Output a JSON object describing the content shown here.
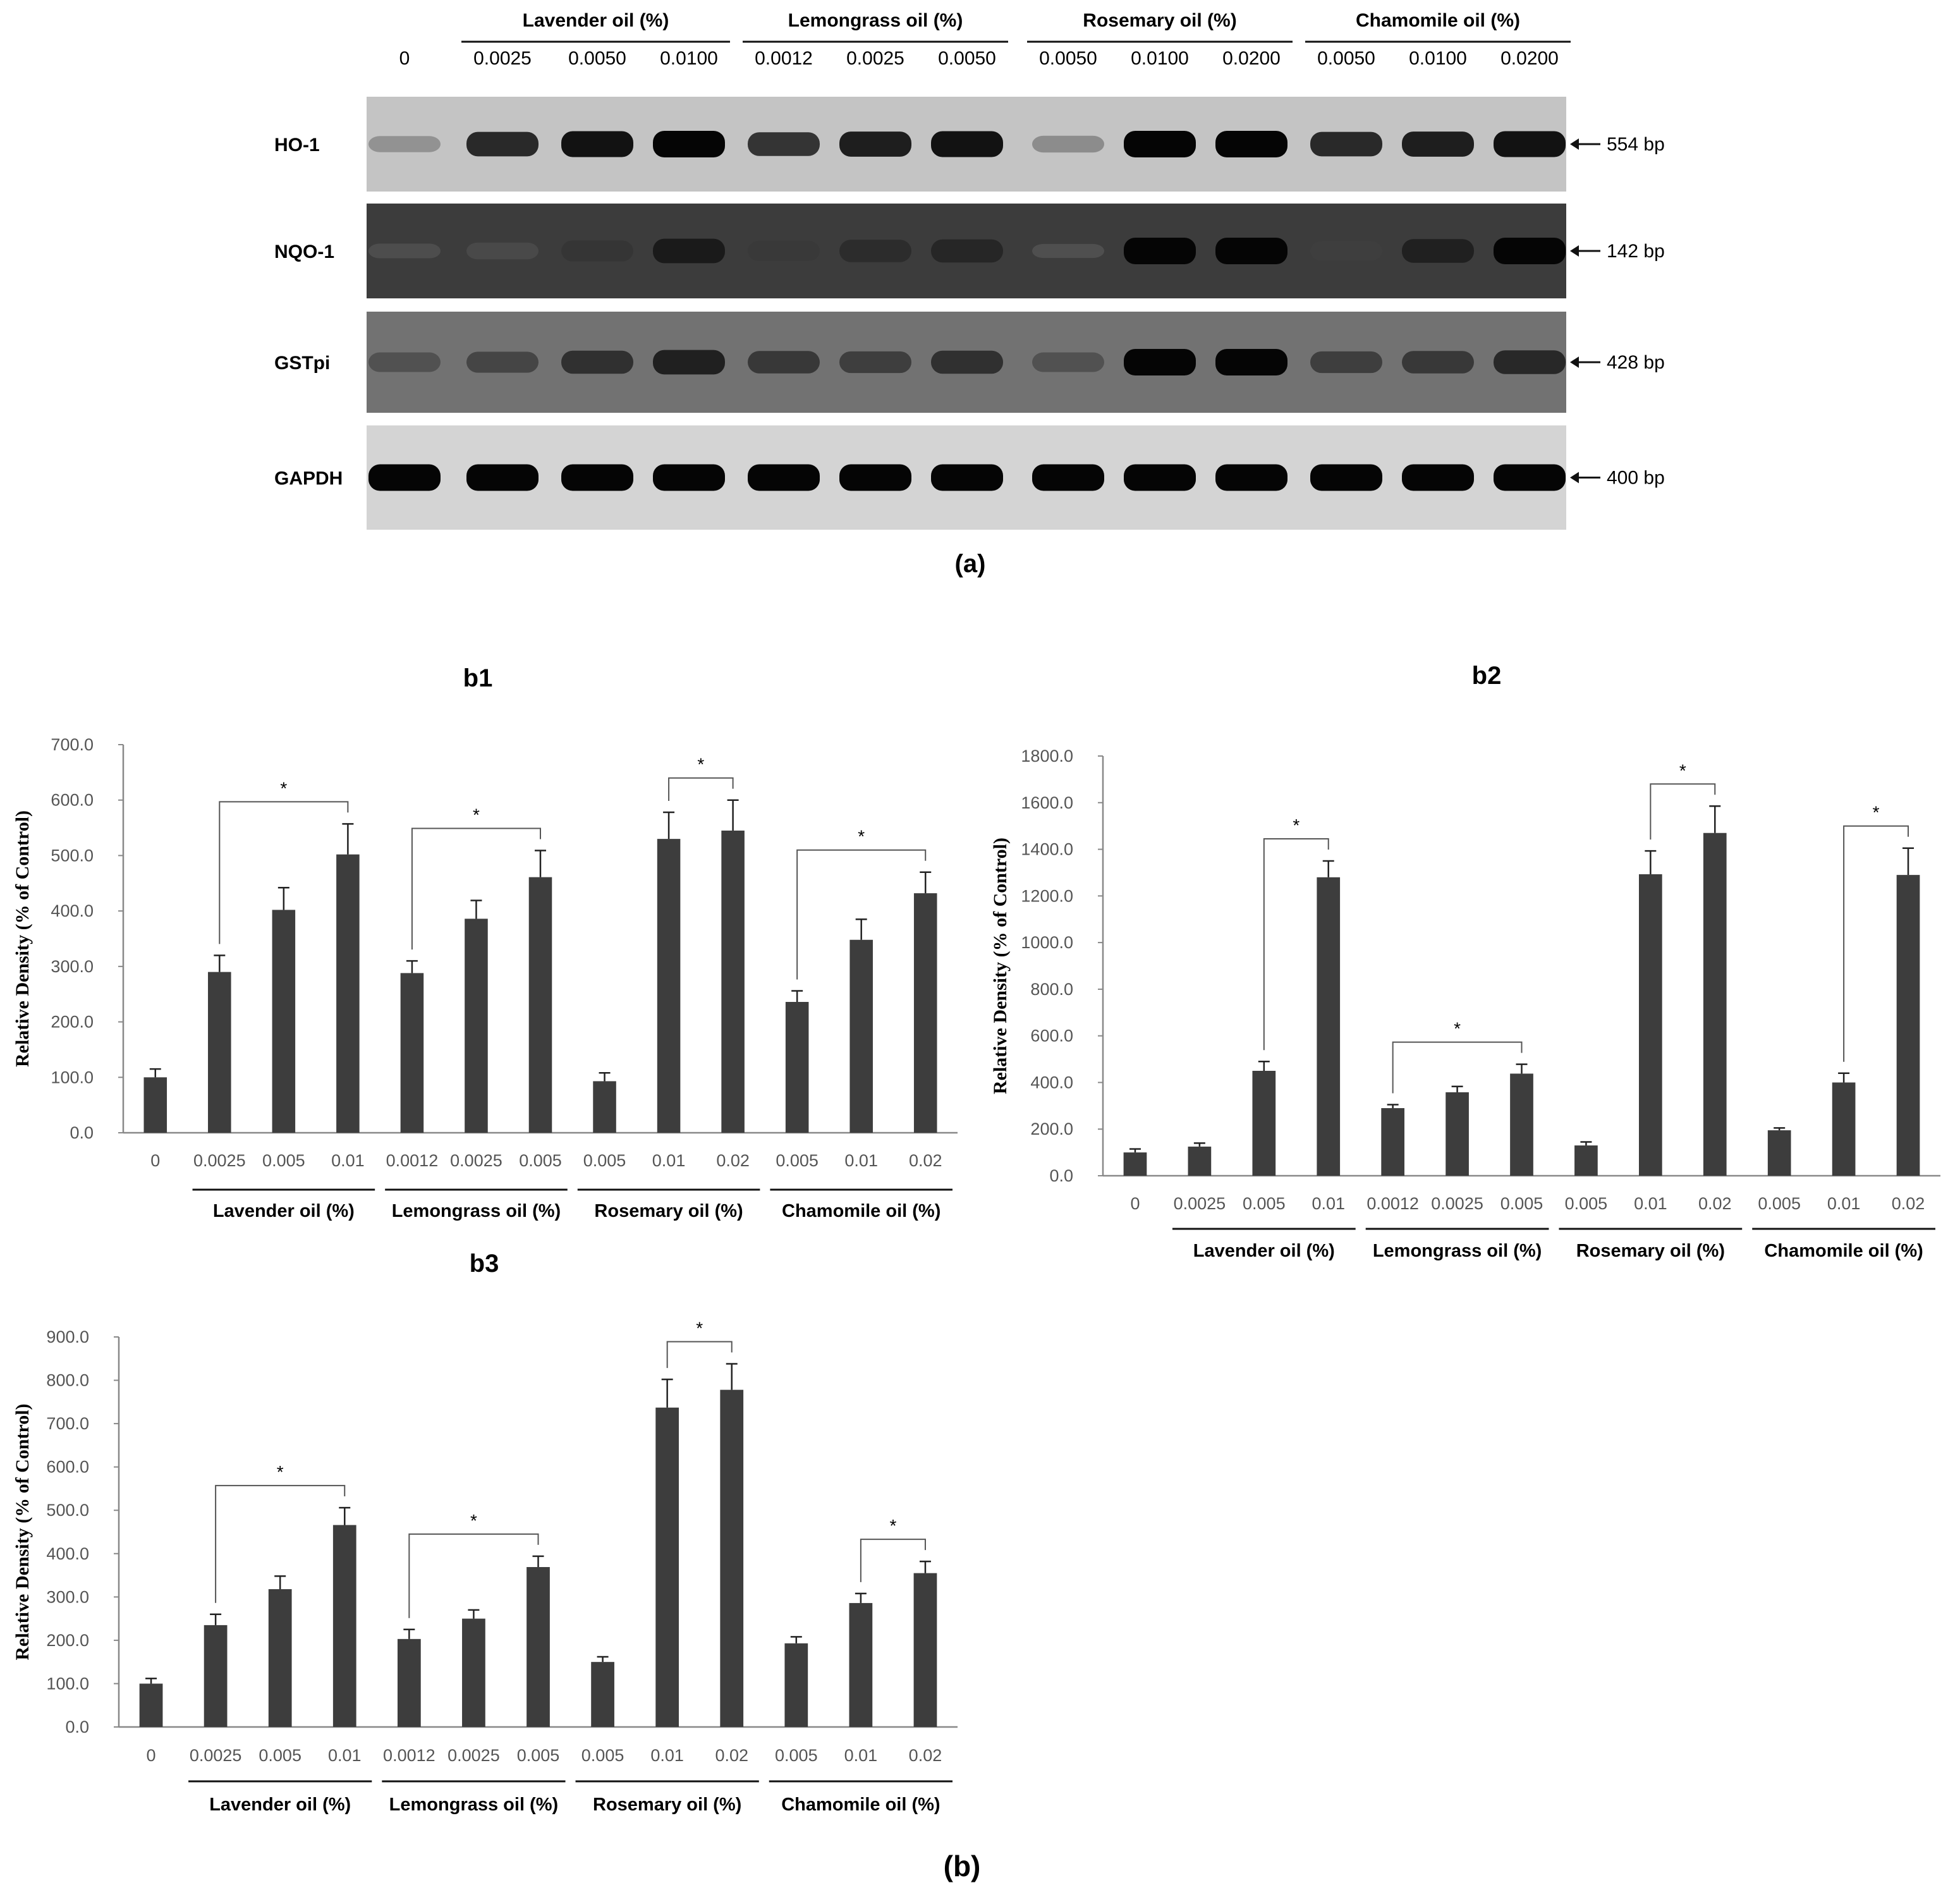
{
  "panel_a": {
    "caption": "(a)",
    "control_label": "0",
    "groups": [
      {
        "name": "Lavender oil (%)",
        "lanes": [
          "0.0025",
          "0.0050",
          "0.0100"
        ]
      },
      {
        "name": "Lemongrass oil (%)",
        "lanes": [
          "0.0012",
          "0.0025",
          "0.0050"
        ]
      },
      {
        "name": "Rosemary oil (%)",
        "lanes": [
          "0.0050",
          "0.0100",
          "0.0200"
        ]
      },
      {
        "name": "Chamomile oil (%)",
        "lanes": [
          "0.0050",
          "0.0100",
          "0.0200"
        ]
      }
    ],
    "blots": [
      {
        "gene": "HO-1",
        "size": "554 bp",
        "background": "#c4c4c4",
        "band_intensity": [
          0.25,
          0.85,
          0.95,
          1.0,
          0.8,
          0.9,
          0.95,
          0.3,
          1.0,
          1.0,
          0.85,
          0.9,
          0.95
        ]
      },
      {
        "gene": "NQO-1",
        "size": "142 bp",
        "background": "#3c3c3c",
        "band_intensity": [
          0.15,
          0.3,
          0.6,
          0.85,
          0.55,
          0.7,
          0.75,
          0.1,
          1.0,
          1.0,
          0.5,
          0.8,
          1.0
        ]
      },
      {
        "gene": "GSTpi",
        "size": "428 bp",
        "background": "#727272",
        "band_intensity": [
          0.5,
          0.6,
          0.75,
          0.85,
          0.7,
          0.65,
          0.75,
          0.5,
          1.0,
          1.0,
          0.65,
          0.7,
          0.8
        ]
      },
      {
        "gene": "GAPDH",
        "size": "400 bp",
        "background": "#d4d4d4",
        "band_intensity": [
          1.0,
          1.0,
          1.0,
          1.0,
          1.0,
          1.0,
          1.0,
          1.0,
          1.0,
          1.0,
          1.0,
          1.0,
          1.0
        ]
      }
    ]
  },
  "panel_b_caption": "(b)",
  "chart_data": [
    {
      "id": "b1",
      "type": "bar",
      "title": "b1",
      "ylabel": "Relative Density (% of Control)",
      "ylim": [
        0,
        700
      ],
      "yticks": [
        "0.0",
        "100.0",
        "200.0",
        "300.0",
        "400.0",
        "500.0",
        "600.0",
        "700.0"
      ],
      "categories": [
        "0",
        "0.0025",
        "0.005",
        "0.01",
        "0.0012",
        "0.0025",
        "0.005",
        "0.005",
        "0.01",
        "0.02",
        "0.005",
        "0.01",
        "0.02"
      ],
      "values": [
        100,
        290,
        402,
        502,
        288,
        386,
        461,
        93,
        530,
        545,
        236,
        348,
        432
      ],
      "errors": [
        15,
        30,
        40,
        55,
        22,
        33,
        48,
        15,
        48,
        55,
        20,
        37,
        38
      ],
      "groups": [
        {
          "name": "Lavender oil (%)",
          "from": 1,
          "to": 3
        },
        {
          "name": "Lemongrass oil (%)",
          "from": 4,
          "to": 6
        },
        {
          "name": "Rosemary oil (%)",
          "from": 7,
          "to": 9
        },
        {
          "name": "Chamomile  oil (%)",
          "from": 10,
          "to": 12
        }
      ],
      "significance": [
        {
          "from": 1,
          "to": 3,
          "label": "*"
        },
        {
          "from": 4,
          "to": 6,
          "label": "*"
        },
        {
          "from": 8,
          "to": 9,
          "label": "*"
        },
        {
          "from": 10,
          "to": 12,
          "label": "*"
        }
      ]
    },
    {
      "id": "b2",
      "type": "bar",
      "title": "b2",
      "ylabel": "Relative Density (% of Control)",
      "ylim": [
        0,
        1800
      ],
      "yticks": [
        "0.0",
        "200.0",
        "400.0",
        "600.0",
        "800.0",
        "1000.0",
        "1200.0",
        "1400.0",
        "1600.0",
        "1800.0"
      ],
      "categories": [
        "0",
        "0.0025",
        "0.005",
        "0.01",
        "0.0012",
        "0.0025",
        "0.005",
        "0.005",
        "0.01",
        "0.02",
        "0.005",
        "0.01",
        "0.02"
      ],
      "values": [
        100,
        125,
        450,
        1280,
        290,
        358,
        438,
        130,
        1293,
        1470,
        195,
        400,
        1290
      ],
      "errors": [
        15,
        15,
        40,
        70,
        15,
        25,
        40,
        15,
        100,
        115,
        10,
        40,
        115
      ],
      "groups": [
        {
          "name": "Lavender oil (%)",
          "from": 1,
          "to": 3
        },
        {
          "name": "Lemongrass oil (%)",
          "from": 4,
          "to": 6
        },
        {
          "name": "Rosemary oil (%)",
          "from": 7,
          "to": 9
        },
        {
          "name": "Chamomile  oil (%)",
          "from": 10,
          "to": 12
        }
      ],
      "significance": [
        {
          "from": 2,
          "to": 3,
          "label": "*"
        },
        {
          "from": 4,
          "to": 6,
          "label": "*"
        },
        {
          "from": 8,
          "to": 9,
          "label": "*"
        },
        {
          "from": 11,
          "to": 12,
          "label": "*"
        }
      ]
    },
    {
      "id": "b3",
      "type": "bar",
      "title": "b3",
      "ylabel": "Relative Density (% of Control)",
      "ylim": [
        0,
        900
      ],
      "yticks": [
        "0.0",
        "100.0",
        "200.0",
        "300.0",
        "400.0",
        "500.0",
        "600.0",
        "700.0",
        "800.0",
        "900.0"
      ],
      "categories": [
        "0",
        "0.0025",
        "0.005",
        "0.01",
        "0.0012",
        "0.0025",
        "0.005",
        "0.005",
        "0.01",
        "0.02",
        "0.005",
        "0.01",
        "0.02"
      ],
      "values": [
        100,
        235,
        318,
        466,
        203,
        250,
        369,
        150,
        737,
        778,
        193,
        286,
        355
      ],
      "errors": [
        12,
        25,
        30,
        40,
        22,
        20,
        25,
        12,
        65,
        60,
        15,
        22,
        27
      ],
      "groups": [
        {
          "name": "Lavender oil (%)",
          "from": 1,
          "to": 3
        },
        {
          "name": "Lemongrass oil (%)",
          "from": 4,
          "to": 6
        },
        {
          "name": "Rosemary oil (%)",
          "from": 7,
          "to": 9
        },
        {
          "name": "Chamomile  oil (%)",
          "from": 10,
          "to": 12
        }
      ],
      "significance": [
        {
          "from": 1,
          "to": 3,
          "label": "*"
        },
        {
          "from": 4,
          "to": 6,
          "label": "*"
        },
        {
          "from": 8,
          "to": 9,
          "label": "*"
        },
        {
          "from": 11,
          "to": 12,
          "label": "*"
        }
      ]
    }
  ]
}
